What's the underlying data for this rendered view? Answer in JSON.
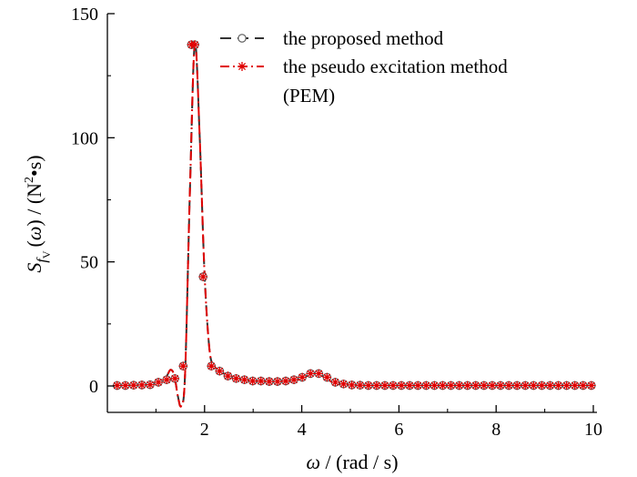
{
  "chart_data": {
    "type": "line",
    "xlabel_parts": [
      "ω",
      " / (rad / s)"
    ],
    "ylabel_parts": [
      "S",
      "f",
      "V",
      "(ω)",
      " / (N",
      "2",
      "•s)"
    ],
    "xlim": [
      0,
      10
    ],
    "ylim": [
      -10,
      150
    ],
    "x_ticks": [
      2,
      4,
      6,
      8,
      10
    ],
    "y_ticks": [
      0,
      50,
      100,
      150
    ],
    "grid": false,
    "legend_position": "top-right",
    "legend": [
      {
        "label": "the proposed method",
        "style": "dashed",
        "color": "#333333",
        "marker": "circle"
      },
      {
        "label": "the pseudo excitation method",
        "label_cont": "(PEM)",
        "style": "dash-dot",
        "color": "#e00000",
        "marker": "asterisk"
      }
    ],
    "curve": {
      "x": [
        0.2,
        0.6,
        1.0,
        1.2,
        1.3,
        1.38,
        1.45,
        1.52,
        1.6,
        1.7,
        1.8,
        1.9,
        2.0,
        2.1,
        2.2,
        2.4,
        2.7,
        3.0,
        3.4,
        3.8,
        4.05,
        4.2,
        4.35,
        4.5,
        4.7,
        5.0,
        5.5,
        6.0,
        7.0,
        8.0,
        9.0,
        10.0
      ],
      "y": [
        0.2,
        0.3,
        1.2,
        3.5,
        6.5,
        4,
        -4,
        -8,
        5,
        80,
        138,
        100,
        45,
        15,
        8,
        5,
        3,
        2,
        1.8,
        2,
        3.5,
        5,
        5,
        3,
        1,
        0.4,
        0.2,
        0.2,
        0.2,
        0.2,
        0.2,
        0.2
      ]
    },
    "series": [
      {
        "name": "the proposed method",
        "x": [
          0.2,
          0.37,
          0.54,
          0.71,
          0.88,
          1.05,
          1.22,
          1.39,
          1.56,
          1.73,
          1.8,
          1.97,
          2.14,
          2.31,
          2.48,
          2.65,
          2.82,
          2.99,
          3.16,
          3.33,
          3.5,
          3.67,
          3.84,
          4.01,
          4.18,
          4.35,
          4.52,
          4.69,
          4.86,
          5.03,
          5.2,
          5.37,
          5.54,
          5.71,
          5.88,
          6.05,
          6.22,
          6.39,
          6.56,
          6.73,
          6.9,
          7.07,
          7.24,
          7.41,
          7.58,
          7.75,
          7.92,
          8.09,
          8.26,
          8.43,
          8.6,
          8.77,
          8.94,
          9.11,
          9.28,
          9.45,
          9.62,
          9.79,
          9.96
        ],
        "y": [
          0.2,
          0.2,
          0.3,
          0.4,
          0.5,
          1.5,
          2.5,
          3.0,
          8.0,
          137.5,
          137.5,
          44.0,
          8.0,
          6.0,
          4.0,
          3.0,
          2.5,
          2.0,
          2.0,
          1.8,
          1.8,
          2.0,
          2.5,
          3.5,
          5.0,
          5.0,
          3.5,
          1.5,
          0.8,
          0.4,
          0.3,
          0.2,
          0.2,
          0.2,
          0.2,
          0.2,
          0.2,
          0.2,
          0.2,
          0.2,
          0.2,
          0.2,
          0.2,
          0.2,
          0.2,
          0.2,
          0.2,
          0.2,
          0.2,
          0.2,
          0.2,
          0.2,
          0.2,
          0.2,
          0.2,
          0.2,
          0.2,
          0.2,
          0.2
        ]
      },
      {
        "name": "the pseudo excitation method (PEM)",
        "x": [
          0.2,
          0.37,
          0.54,
          0.71,
          0.88,
          1.05,
          1.22,
          1.39,
          1.56,
          1.73,
          1.8,
          1.97,
          2.14,
          2.31,
          2.48,
          2.65,
          2.82,
          2.99,
          3.16,
          3.33,
          3.5,
          3.67,
          3.84,
          4.01,
          4.18,
          4.35,
          4.52,
          4.69,
          4.86,
          5.03,
          5.2,
          5.37,
          5.54,
          5.71,
          5.88,
          6.05,
          6.22,
          6.39,
          6.56,
          6.73,
          6.9,
          7.07,
          7.24,
          7.41,
          7.58,
          7.75,
          7.92,
          8.09,
          8.26,
          8.43,
          8.6,
          8.77,
          8.94,
          9.11,
          9.28,
          9.45,
          9.62,
          9.79,
          9.96
        ],
        "y": [
          0.2,
          0.2,
          0.3,
          0.4,
          0.5,
          1.5,
          2.5,
          3.0,
          8.0,
          137.5,
          137.5,
          44.0,
          8.0,
          6.0,
          4.0,
          3.0,
          2.5,
          2.0,
          2.0,
          1.8,
          1.8,
          2.0,
          2.5,
          3.5,
          5.0,
          5.0,
          3.5,
          1.5,
          0.8,
          0.4,
          0.3,
          0.2,
          0.2,
          0.2,
          0.2,
          0.2,
          0.2,
          0.2,
          0.2,
          0.2,
          0.2,
          0.2,
          0.2,
          0.2,
          0.2,
          0.2,
          0.2,
          0.2,
          0.2,
          0.2,
          0.2,
          0.2,
          0.2,
          0.2,
          0.2,
          0.2,
          0.2,
          0.2,
          0.2
        ]
      }
    ]
  }
}
